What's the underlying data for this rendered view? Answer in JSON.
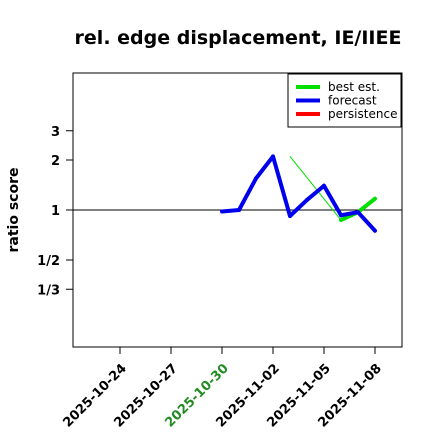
{
  "chart_data": {
    "type": "line",
    "title": "rel. edge displacement, IE/IIEE",
    "ylabel": "ratio score",
    "xlabel": "",
    "xlim": [
      "2025-10-21",
      "2025-11-10"
    ],
    "y_scale": "log",
    "y_ticks": [
      {
        "value": 3,
        "label": "3"
      },
      {
        "value": 2,
        "label": "2"
      },
      {
        "value": 1,
        "label": "1"
      },
      {
        "value": 0.5,
        "label": "1/2"
      },
      {
        "value": 0.3333,
        "label": "1/3"
      }
    ],
    "x_ticks": [
      {
        "date": "2025-10-24",
        "label": "2025-10-24",
        "color": "#000000"
      },
      {
        "date": "2025-10-27",
        "label": "2025-10-27",
        "color": "#000000"
      },
      {
        "date": "2025-10-30",
        "label": "2025-10-30",
        "color": "#228B22"
      },
      {
        "date": "2025-11-02",
        "label": "2025-11-02",
        "color": "#000000"
      },
      {
        "date": "2025-11-05",
        "label": "2025-11-05",
        "color": "#000000"
      },
      {
        "date": "2025-11-08",
        "label": "2025-11-08",
        "color": "#000000"
      }
    ],
    "reference_line": 1,
    "legend_position": "top-right",
    "series": [
      {
        "name": "best est.",
        "color": "#00e000",
        "points": [
          {
            "x": "2025-11-03",
            "y": 2.1
          },
          {
            "x": "2025-11-06",
            "y": 0.87
          },
          {
            "x": "2025-11-07",
            "y": 0.97
          },
          {
            "x": "2025-11-08",
            "y": 1.17
          }
        ],
        "thin_segments": [
          0
        ]
      },
      {
        "name": "forecast",
        "color": "#0000ee",
        "points": [
          {
            "x": "2025-10-30",
            "y": 0.98
          },
          {
            "x": "2025-10-31",
            "y": 1.0
          },
          {
            "x": "2025-11-01",
            "y": 1.55
          },
          {
            "x": "2025-11-02",
            "y": 2.1
          },
          {
            "x": "2025-11-03",
            "y": 0.92
          },
          {
            "x": "2025-11-04",
            "y": 1.15
          },
          {
            "x": "2025-11-05",
            "y": 1.4
          },
          {
            "x": "2025-11-06",
            "y": 0.93
          },
          {
            "x": "2025-11-07",
            "y": 0.97
          },
          {
            "x": "2025-11-08",
            "y": 0.75
          }
        ]
      },
      {
        "name": "persistence",
        "color": "#ff0000",
        "points": []
      }
    ]
  }
}
